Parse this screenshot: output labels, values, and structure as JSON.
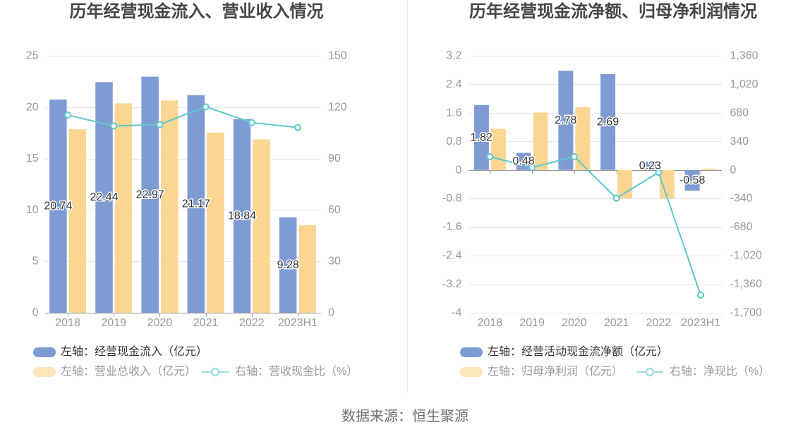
{
  "page": {
    "background": "#ffffff"
  },
  "source_text": "数据来源：恒生聚源",
  "colors": {
    "bar_blue": "#7f9bd3",
    "bar_orange": "#fbd693",
    "line_teal": "#5ec8cd",
    "marker_fill": "#ffffff",
    "legend_orange": "#fce4bb",
    "legend_teal": "#a3dce2",
    "grid": "#e2e7f3",
    "axis_line": "#969696",
    "tick_text": "#999999",
    "value_label_text": "#333333",
    "value_label_halo": "#ffffff",
    "title_text": "#464646",
    "legend_text_primary": "#333333",
    "legend_text_secondary": "#999999",
    "source_text_color": "#6e6e6e",
    "divider": "#ececec"
  },
  "chart_data": [
    {
      "type": "bar",
      "title": "历年经营现金流入、营业收入情况",
      "categories": [
        "2018",
        "2019",
        "2020",
        "2021",
        "2022",
        "2023H1"
      ],
      "series": [
        {
          "name": "左轴：经营现金流入（亿元）",
          "type": "bar",
          "axis": "left",
          "color_key": "bar_blue",
          "values": [
            20.74,
            22.44,
            22.97,
            21.17,
            18.84,
            9.28
          ],
          "value_labels": [
            "20.74",
            "22.44",
            "22.97",
            "21.17",
            "18.84",
            "9.28"
          ]
        },
        {
          "name": "左轴：营业总收入（亿元）",
          "type": "bar",
          "axis": "left",
          "color_key": "bar_orange",
          "values": [
            17.86,
            20.37,
            20.65,
            17.52,
            16.86,
            8.51
          ]
        },
        {
          "name": "右轴：营收现金比（%）",
          "type": "line",
          "axis": "right",
          "color_key": "line_teal",
          "values": [
            115.4,
            109.0,
            109.9,
            120.2,
            111.0,
            108.1
          ]
        }
      ],
      "left_axis": {
        "min": 0,
        "max": 25,
        "tick_values": [
          25,
          20,
          15,
          10,
          5,
          0
        ],
        "tick_labels": [
          "25",
          "20",
          "15",
          "10",
          "5",
          "0"
        ]
      },
      "right_axis": {
        "min": 0,
        "max": 150,
        "tick_values": [
          150,
          120,
          90,
          60,
          30,
          0
        ],
        "tick_labels": [
          "150",
          "120",
          "90",
          "60",
          "30",
          "0"
        ]
      },
      "grid": true,
      "legend_position": "bottom-left"
    },
    {
      "type": "bar",
      "title": "历年经营现金流净额、归母净利润情况",
      "categories": [
        "2018",
        "2019",
        "2020",
        "2021",
        "2022",
        "2023H1"
      ],
      "series": [
        {
          "name": "左轴：经营活动现金流净额（亿元）",
          "type": "bar",
          "axis": "left",
          "color_key": "bar_blue",
          "values": [
            1.82,
            0.48,
            2.78,
            2.69,
            0.23,
            -0.58
          ],
          "value_labels": [
            "1.82",
            "0.48",
            "2.78",
            "2.69",
            "0.23",
            "-0.58"
          ]
        },
        {
          "name": "左轴：归母净利润（亿元）",
          "type": "bar",
          "axis": "left",
          "color_key": "bar_orange",
          "values": [
            1.15,
            1.61,
            1.76,
            -0.8,
            -0.8,
            0.04
          ]
        },
        {
          "name": "右轴：净现比（%）",
          "type": "line",
          "axis": "right",
          "color_key": "line_teal",
          "values": [
            158,
            30,
            158,
            -336,
            -29,
            -1490
          ]
        }
      ],
      "left_axis": {
        "min": -4,
        "max": 3.2,
        "tick_values": [
          3.2,
          2.4,
          1.6,
          0.8,
          0,
          -0.8,
          -1.6,
          -2.4,
          -3.2,
          -4
        ],
        "tick_labels": [
          "3.2",
          "2.4",
          "1.6",
          "0.8",
          "0",
          "-0.8",
          "-1.6",
          "-2.4",
          "-3.2",
          "-4"
        ]
      },
      "right_axis": {
        "min": -1700,
        "max": 1360,
        "tick_values": [
          1360,
          1020,
          680,
          340,
          0,
          -340,
          -680,
          -1020,
          -1360,
          -1700
        ],
        "tick_labels": [
          "1,360",
          "1,020",
          "680",
          "340",
          "0",
          "-340",
          "-680",
          "-1,020",
          "-1,360",
          "-1,700"
        ]
      },
      "grid": true,
      "legend_position": "bottom-left"
    }
  ]
}
